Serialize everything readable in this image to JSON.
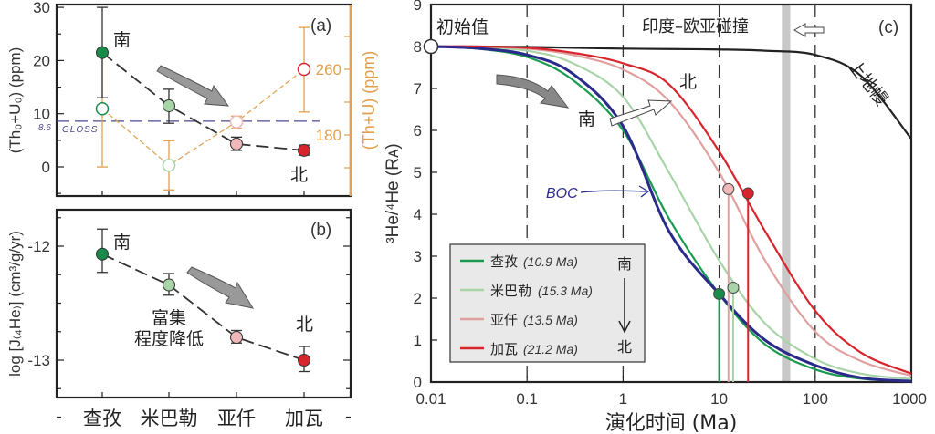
{
  "chart_data": [
    {
      "panel": "(a)",
      "type": "scatter",
      "categories": [
        "查孜",
        "米巴勒",
        "亚仟",
        "加瓦"
      ],
      "ylabel": "(Th₀+U₀) (ppm)",
      "ylim": [
        -5.5,
        30
      ],
      "yticks": [
        0,
        10,
        20,
        30
      ],
      "y2label": "(Th+U) (ppm)",
      "y2lim": [
        105,
        339
      ],
      "y2ticks": [
        180,
        260
      ],
      "reference_line": {
        "value": 8.6,
        "value_label": "8.6",
        "label": "GLOSS",
        "color": "#4a4a8a"
      },
      "series": [
        {
          "axis": "left",
          "values": [
            21.5,
            11.5,
            4.3,
            3.1
          ],
          "err_low": [
            13,
            8.2,
            3.1,
            2.2
          ],
          "err_high": [
            30,
            14.6,
            5.6,
            4.1
          ],
          "line": "black-dashed"
        },
        {
          "axis": "right",
          "values": [
            212,
            143,
            196,
            260
          ],
          "err_low": [
            141,
            113,
            188,
            208
          ],
          "err_high": [
            284,
            173,
            203,
            311
          ],
          "line": "orange-dashed",
          "color": "#e0a050"
        }
      ],
      "annotations": [
        "南",
        "北"
      ]
    },
    {
      "panel": "(b)",
      "type": "scatter",
      "categories": [
        "查孜",
        "米巴勒",
        "亚仟",
        "加瓦"
      ],
      "ylabel": "log [J₍₄He₎] (cm³/g/yr)",
      "ylim": [
        -13.53,
        -11.68
      ],
      "yticks": [
        -12,
        -13
      ],
      "series": [
        {
          "values": [
            -12.07,
            -12.34,
            -12.8,
            -13.0
          ],
          "err_low": [
            -12.23,
            -12.43,
            -12.85,
            -13.1
          ],
          "err_high": [
            -11.85,
            -12.24,
            -12.74,
            -12.88
          ]
        }
      ],
      "annotations": [
        "南",
        "北",
        "富集",
        "程度降低"
      ]
    },
    {
      "panel": "(c)",
      "type": "line",
      "xscale": "log",
      "xlabel": "演化时间 (Ma)",
      "ylabel": "³He/⁴He (Rᴀ)",
      "xlim": [
        0.01,
        1000
      ],
      "ylim": [
        0,
        9
      ],
      "xticks": [
        "0.01",
        "0.1",
        "1",
        "10",
        "100",
        "1000"
      ],
      "yticks": [
        0,
        1,
        2,
        3,
        4,
        5,
        6,
        7,
        8,
        9
      ],
      "x": [
        0.01,
        0.03,
        0.1,
        0.3,
        1,
        3,
        10,
        30,
        100,
        300,
        1000
      ],
      "series": [
        {
          "name": "上地幔",
          "color": "#222222",
          "y": [
            8,
            8,
            7.99,
            7.97,
            7.95,
            7.94,
            7.93,
            7.9,
            7.8,
            7.3,
            5.8
          ]
        },
        {
          "name": "BOC",
          "color": "#2a2a8a",
          "y": [
            8,
            7.96,
            7.8,
            7.35,
            6.1,
            3.6,
            2.1,
            1.0,
            0.4,
            0.1,
            0.02
          ]
        },
        {
          "name": "查孜",
          "age": "(10.9 Ma)",
          "color": "#1a9a50",
          "y": [
            8,
            7.95,
            7.75,
            7.2,
            6.0,
            3.9,
            2.1,
            0.9,
            0.3,
            0.08,
            0.02
          ],
          "marker": [
            10,
            2.1
          ]
        },
        {
          "name": "米巴勒",
          "age": "(15.3 Ma)",
          "color": "#a8d4a8",
          "y": [
            8,
            7.98,
            7.9,
            7.6,
            6.8,
            5.0,
            2.9,
            1.4,
            0.55,
            0.2,
            0.07
          ],
          "marker": [
            14,
            2.25
          ]
        },
        {
          "name": "亚仟",
          "age": "(13.5 Ma)",
          "color": "#e0a0a0",
          "y": [
            8,
            8,
            7.95,
            7.8,
            7.45,
            6.7,
            5.0,
            2.9,
            1.2,
            0.5,
            0.15
          ],
          "marker": [
            12.5,
            4.6
          ]
        },
        {
          "name": "加瓦",
          "age": "(21.2 Ma)",
          "color": "#d8242c",
          "y": [
            8,
            8,
            7.97,
            7.85,
            7.6,
            7.1,
            5.5,
            3.6,
            1.7,
            0.7,
            0.2
          ],
          "marker": [
            20,
            4.5
          ]
        }
      ],
      "dashed_verticals": [
        0.1,
        1,
        10,
        100
      ],
      "shaded_band": [
        45,
        55
      ],
      "initial_point": [
        0.01,
        8
      ],
      "annotations": {
        "initial": "初始值",
        "collision": "印度–欧亚碰撞",
        "mantle": "上地幔",
        "north": "北",
        "south": "南",
        "boc": "BOC",
        "legend_south": "南",
        "legend_north": "北"
      },
      "legend": "bottom-left"
    }
  ],
  "colors": {
    "dark_green": "#1a8a4a",
    "light_green": "#a8d4a8",
    "pink": "#f0b8b8",
    "red": "#d8242c",
    "orange": "#e0a050"
  }
}
